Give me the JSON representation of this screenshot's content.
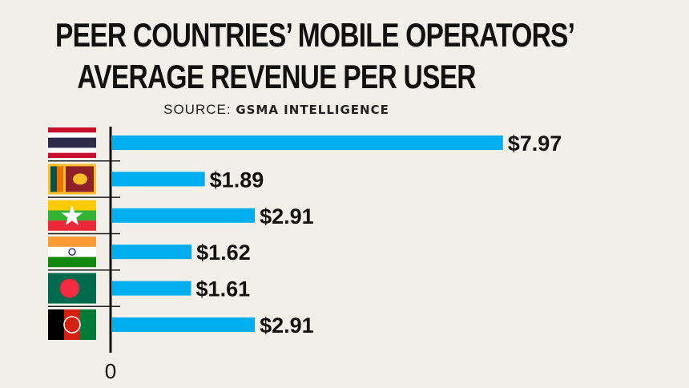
{
  "header": {
    "title_line1": "PEER COUNTRIES’ MOBILE OPERATORS’",
    "title_line2": "AVERAGE REVENUE PER USER",
    "source_prefix": "SOURCE:",
    "source_name": "GSMA INTELLIGENCE"
  },
  "chart_data": {
    "type": "bar",
    "orientation": "horizontal",
    "title": "PEER COUNTRIES’ MOBILE OPERATORS’ AVERAGE REVENUE PER USER",
    "categories": [
      "Thailand",
      "Sri Lanka",
      "Myanmar",
      "India",
      "Bangladesh",
      "Afghanistan"
    ],
    "values": [
      7.97,
      1.89,
      2.91,
      1.62,
      1.61,
      2.91
    ],
    "labels": [
      "$7.97",
      "$1.89",
      "$2.91",
      "$1.62",
      "$1.61",
      "$2.91"
    ],
    "xtick": "0",
    "xlim": [
      0,
      11.6
    ],
    "bar_color": "#00aeef"
  }
}
